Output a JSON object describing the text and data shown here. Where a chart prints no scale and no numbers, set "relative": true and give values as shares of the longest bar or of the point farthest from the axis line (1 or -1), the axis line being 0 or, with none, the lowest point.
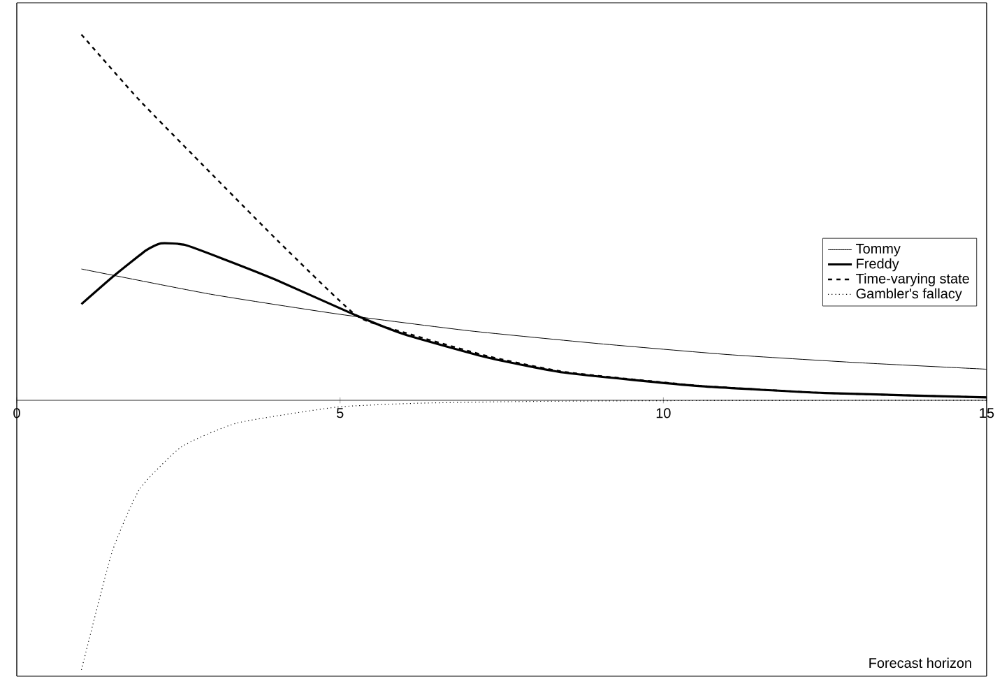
{
  "chart_data": {
    "type": "line",
    "relative": true,
    "xlabel": "Forecast horizon",
    "xlim": [
      0,
      15
    ],
    "xticks": [
      0,
      5,
      10,
      15
    ],
    "legend": "right",
    "marker": "none",
    "series": [
      {
        "name": "Tommy",
        "color": "#000000",
        "line_style": "solid",
        "x": [
          1,
          3,
          5,
          7,
          9,
          11,
          13,
          15
        ],
        "values": [
          0.359,
          0.29,
          0.235,
          0.19,
          0.155,
          0.125,
          0.103,
          0.085
        ]
      },
      {
        "name": "Freddy",
        "color": "#000000",
        "line_style": "solid",
        "x": [
          1,
          1.5,
          2,
          2.23,
          2.6,
          3.2,
          4,
          5.25,
          6,
          7.3,
          8.5,
          10.55,
          12.5,
          15
        ],
        "values": [
          0.263,
          0.34,
          0.41,
          0.429,
          0.425,
          0.386,
          0.33,
          0.232,
          0.18,
          0.116,
          0.075,
          0.039,
          0.02,
          0.008
        ]
      },
      {
        "name": "Time-varying state",
        "color": "#000000",
        "line_style": "dashed",
        "x": [
          1,
          1.9,
          2.98,
          4.06,
          5.25,
          6,
          7.3,
          8.5,
          10.55,
          12.5,
          15
        ],
        "values": [
          1.0,
          0.82,
          0.625,
          0.432,
          0.232,
          0.185,
          0.12,
          0.077,
          0.04,
          0.02,
          0.008
        ]
      },
      {
        "name": "Gambler's fallacy",
        "color": "#000000",
        "line_style": "dotted",
        "x": [
          1,
          1.47,
          1.9,
          2.55,
          3.41,
          4.93,
          6.2,
          8,
          10,
          15
        ],
        "values": [
          -0.737,
          -0.417,
          -0.243,
          -0.127,
          -0.062,
          -0.019,
          -0.008,
          -0.003,
          -0.001,
          0
        ]
      }
    ]
  }
}
